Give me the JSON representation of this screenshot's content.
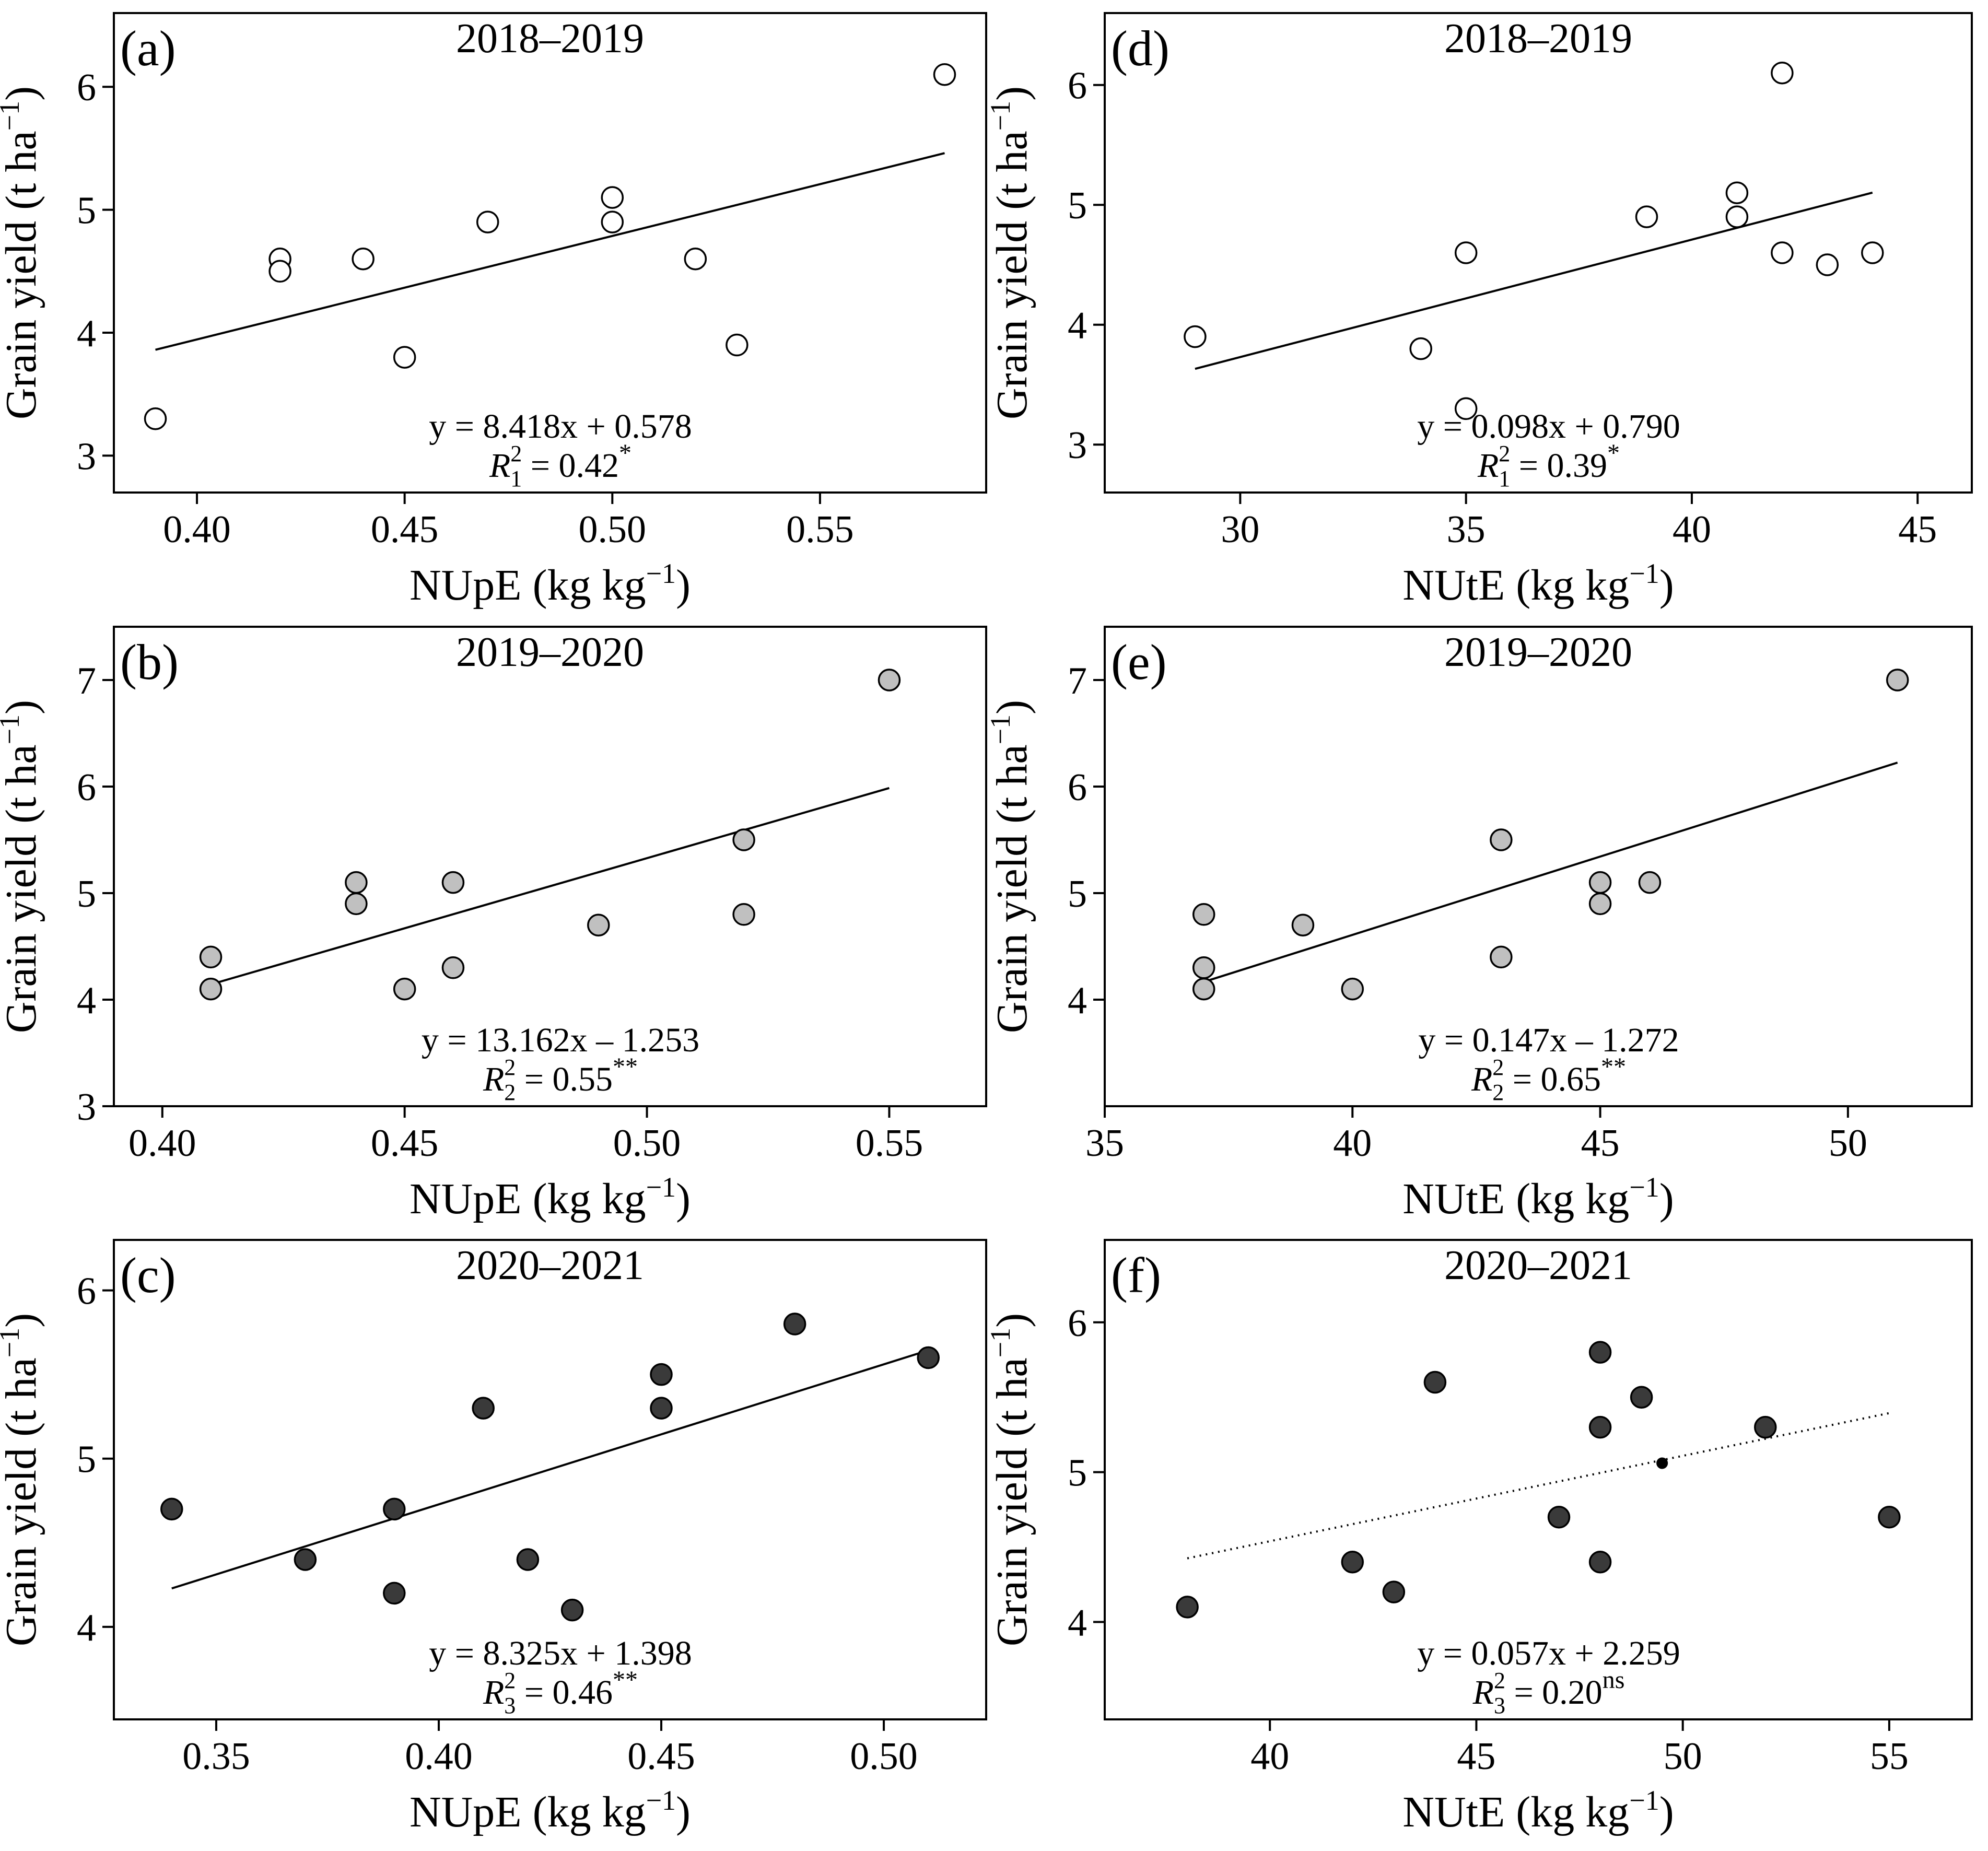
{
  "figure": {
    "y_axis_label": "Grain yield (t ha",
    "y_axis_unit_sup": "−1",
    "y_axis_label_close": ")"
  },
  "chart_data": [
    {
      "id": "a",
      "type": "scatter",
      "panel_label": "(a)",
      "title": "2018–2019",
      "xlabel": "NUpE (kg kg",
      "xlabel_sup": "−1",
      "xlabel_close": ")",
      "xlim": [
        0.38,
        0.59
      ],
      "ylim": [
        2.7,
        6.6
      ],
      "xticks": [
        0.4,
        0.45,
        0.5,
        0.55
      ],
      "xtick_labels": [
        "0.40",
        "0.45",
        "0.50",
        "0.55"
      ],
      "yticks": [
        3,
        4,
        5,
        6
      ],
      "ytick_labels": [
        "3",
        "4",
        "5",
        "6"
      ],
      "points": [
        [
          0.39,
          3.3
        ],
        [
          0.42,
          4.6
        ],
        [
          0.42,
          4.5
        ],
        [
          0.44,
          4.6
        ],
        [
          0.45,
          3.8
        ],
        [
          0.47,
          4.9
        ],
        [
          0.5,
          5.1
        ],
        [
          0.5,
          4.9
        ],
        [
          0.52,
          4.6
        ],
        [
          0.53,
          3.9
        ],
        [
          0.58,
          6.1
        ]
      ],
      "point_fill": "#ffffff",
      "fit": {
        "x": [
          0.39,
          0.58
        ],
        "slope": 8.418,
        "intercept": 0.578,
        "style": "solid"
      },
      "equation": "y = 8.418x + 0.578",
      "r2": {
        "prefix": "R",
        "sub": "1",
        "sup": "2",
        "value": "=  0.42",
        "sig": "*"
      }
    },
    {
      "id": "b",
      "type": "scatter",
      "panel_label": "(b)",
      "title": "2019–2020",
      "xlabel": "NUpE (kg kg",
      "xlabel_sup": "−1",
      "xlabel_close": ")",
      "xlim": [
        0.39,
        0.57
      ],
      "ylim": [
        3,
        7.5
      ],
      "xticks": [
        0.4,
        0.45,
        0.5,
        0.55
      ],
      "xtick_labels": [
        "0.40",
        "0.45",
        "0.50",
        "0.55"
      ],
      "yticks": [
        3,
        4,
        5,
        6,
        7
      ],
      "ytick_labels": [
        "3",
        "4",
        "5",
        "6",
        "7"
      ],
      "points": [
        [
          0.41,
          4.4
        ],
        [
          0.41,
          4.1
        ],
        [
          0.44,
          5.1
        ],
        [
          0.44,
          4.9
        ],
        [
          0.45,
          4.1
        ],
        [
          0.46,
          5.1
        ],
        [
          0.46,
          4.3
        ],
        [
          0.49,
          4.7
        ],
        [
          0.52,
          5.5
        ],
        [
          0.52,
          4.8
        ],
        [
          0.55,
          7.0
        ]
      ],
      "point_fill": "#c0c0c0",
      "fit": {
        "x": [
          0.41,
          0.55
        ],
        "slope": 13.162,
        "intercept": -1.253,
        "style": "solid"
      },
      "equation": "y = 13.162x – 1.253",
      "r2": {
        "prefix": "R",
        "sub": "2",
        "sup": "2",
        "value": "=  0.55",
        "sig": "**"
      }
    },
    {
      "id": "c",
      "type": "scatter",
      "panel_label": "(c)",
      "title": "2020–2021",
      "xlabel": "NUpE (kg kg",
      "xlabel_sup": "−1",
      "xlabel_close": ")",
      "xlim": [
        0.327,
        0.523
      ],
      "ylim": [
        3.45,
        6.3
      ],
      "xticks": [
        0.35,
        0.4,
        0.45,
        0.5
      ],
      "xtick_labels": [
        "0.35",
        "0.40",
        "0.45",
        "0.50"
      ],
      "yticks": [
        4,
        5,
        6
      ],
      "ytick_labels": [
        "4",
        "5",
        "6"
      ],
      "points": [
        [
          0.34,
          4.7
        ],
        [
          0.37,
          4.4
        ],
        [
          0.39,
          4.7
        ],
        [
          0.39,
          4.2
        ],
        [
          0.41,
          5.3
        ],
        [
          0.42,
          4.4
        ],
        [
          0.43,
          4.1
        ],
        [
          0.45,
          5.5
        ],
        [
          0.45,
          5.3
        ],
        [
          0.48,
          5.8
        ],
        [
          0.51,
          5.6
        ]
      ],
      "point_fill": "#3a3a3a",
      "fit": {
        "x": [
          0.34,
          0.51
        ],
        "slope": 8.325,
        "intercept": 1.398,
        "style": "solid"
      },
      "equation": "y = 8.325x + 1.398",
      "r2": {
        "prefix": "R",
        "sub": "3",
        "sup": "2",
        "value": "=  0.46",
        "sig": "**"
      }
    },
    {
      "id": "d",
      "type": "scatter",
      "panel_label": "(d)",
      "title": "2018–2019",
      "xlabel": "NUtE (kg kg",
      "xlabel_sup": "−1",
      "xlabel_close": ")",
      "xlim": [
        27,
        46.2
      ],
      "ylim": [
        2.6,
        6.6
      ],
      "xticks": [
        30,
        35,
        40,
        45
      ],
      "xtick_labels": [
        "30",
        "35",
        "40",
        "45"
      ],
      "yticks": [
        3,
        4,
        5,
        6
      ],
      "ytick_labels": [
        "3",
        "4",
        "5",
        "6"
      ],
      "points": [
        [
          29,
          3.9
        ],
        [
          34,
          3.8
        ],
        [
          35,
          4.6
        ],
        [
          35,
          3.3
        ],
        [
          39,
          4.9
        ],
        [
          41,
          5.1
        ],
        [
          41,
          4.9
        ],
        [
          42,
          6.1
        ],
        [
          42,
          4.6
        ],
        [
          43,
          4.5
        ],
        [
          44,
          4.6
        ]
      ],
      "point_fill": "#ffffff",
      "fit": {
        "x": [
          29,
          44
        ],
        "slope": 0.098,
        "intercept": 0.79,
        "style": "solid"
      },
      "equation": "y = 0.098x + 0.790",
      "r2": {
        "prefix": "R",
        "sub": "1",
        "sup": "2",
        "value": "=  0.39",
        "sig": "*"
      }
    },
    {
      "id": "e",
      "type": "scatter",
      "panel_label": "(e)",
      "title": "2019–2020",
      "xlabel": "NUtE (kg kg",
      "xlabel_sup": "−1",
      "xlabel_close": ")",
      "xlim": [
        35,
        52.5
      ],
      "ylim": [
        3,
        7.5
      ],
      "xticks": [
        35,
        40,
        45,
        50
      ],
      "xtick_labels": [
        "35",
        "40",
        "45",
        "50"
      ],
      "yticks": [
        4,
        5,
        6,
        7
      ],
      "ytick_labels": [
        "4",
        "5",
        "6",
        "7"
      ],
      "points": [
        [
          37,
          4.8
        ],
        [
          37,
          4.3
        ],
        [
          37,
          4.1
        ],
        [
          39,
          4.7
        ],
        [
          40,
          4.1
        ],
        [
          43,
          5.5
        ],
        [
          43,
          4.4
        ],
        [
          45,
          5.1
        ],
        [
          45,
          4.9
        ],
        [
          46,
          5.1
        ],
        [
          51,
          7.0
        ]
      ],
      "point_fill": "#c0c0c0",
      "fit": {
        "x": [
          37,
          51
        ],
        "slope": 0.147,
        "intercept": -1.272,
        "style": "solid"
      },
      "equation": "y = 0.147x – 1.272",
      "r2": {
        "prefix": "R",
        "sub": "2",
        "sup": "2",
        "value": "=  0.65",
        "sig": "**"
      }
    },
    {
      "id": "f",
      "type": "scatter",
      "panel_label": "(f)",
      "title": "2020–2021",
      "xlabel": "NUtE (kg kg",
      "xlabel_sup": "−1",
      "xlabel_close": ")",
      "xlim": [
        36,
        57
      ],
      "ylim": [
        3.35,
        6.55
      ],
      "xticks": [
        40,
        45,
        50,
        55
      ],
      "xtick_labels": [
        "40",
        "45",
        "50",
        "55"
      ],
      "yticks": [
        4,
        5,
        6
      ],
      "ytick_labels": [
        "4",
        "5",
        "6"
      ],
      "points": [
        [
          38,
          4.1
        ],
        [
          42,
          4.4
        ],
        [
          43,
          4.2
        ],
        [
          44,
          5.6
        ],
        [
          47,
          4.7
        ],
        [
          48,
          5.8
        ],
        [
          48,
          5.3
        ],
        [
          48,
          4.4
        ],
        [
          49,
          5.5
        ],
        [
          52,
          5.3
        ],
        [
          55,
          4.7
        ]
      ],
      "point_fill": "#3a3a3a",
      "extra_points": [
        [
          49.5,
          5.06
        ]
      ],
      "fit": {
        "x": [
          38,
          55
        ],
        "slope": 0.057,
        "intercept": 2.259,
        "style": "dotted"
      },
      "equation": "y = 0.057x + 2.259",
      "r2": {
        "prefix": "R",
        "sub": "3",
        "sup": "2",
        "value": "=  0.20",
        "sig": "ns"
      }
    }
  ]
}
